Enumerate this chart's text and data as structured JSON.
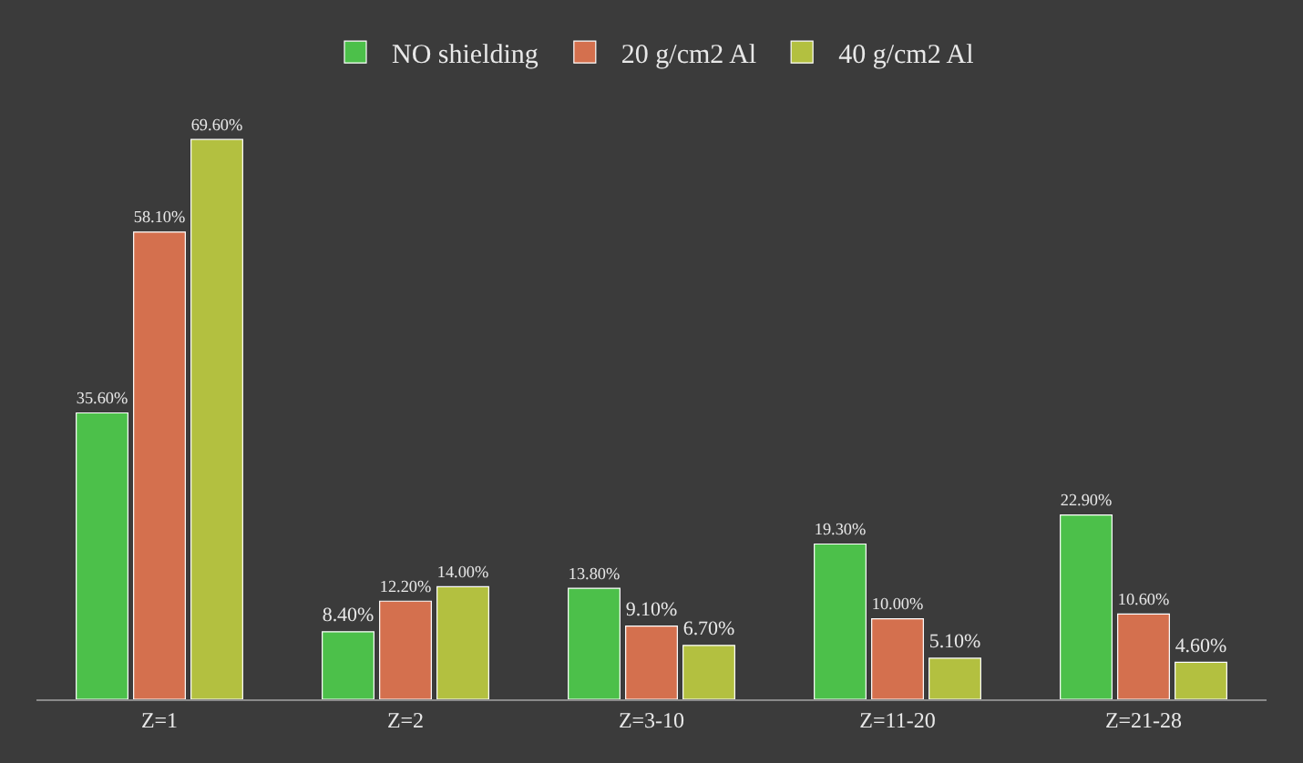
{
  "chart_data": {
    "type": "bar",
    "categories": [
      "Z=1",
      "Z=2",
      "Z=3-10",
      "Z=11-20",
      "Z=21-28"
    ],
    "series": [
      {
        "name": "NO shielding",
        "color": "#4cc04a",
        "values": [
          35.6,
          8.4,
          13.8,
          19.3,
          22.9
        ],
        "value_labels": [
          "35.60%",
          "8.40%",
          "13.80%",
          "19.30%",
          "22.90%"
        ]
      },
      {
        "name": "20 g/cm2 Al",
        "color": "#d4704e",
        "values": [
          58.1,
          12.2,
          9.1,
          10.0,
          10.6
        ],
        "value_labels": [
          "58.10%",
          "12.20%",
          "9.10%",
          "10.00%",
          "10.60%"
        ]
      },
      {
        "name": "40 g/cm2 Al",
        "color": "#b3c040",
        "values": [
          69.6,
          14.0,
          6.7,
          5.1,
          4.6
        ],
        "value_labels": [
          "69.60%",
          "14.00%",
          "6.70%",
          "5.10%",
          "4.60%"
        ]
      }
    ],
    "legend": "top",
    "grid": false
  }
}
